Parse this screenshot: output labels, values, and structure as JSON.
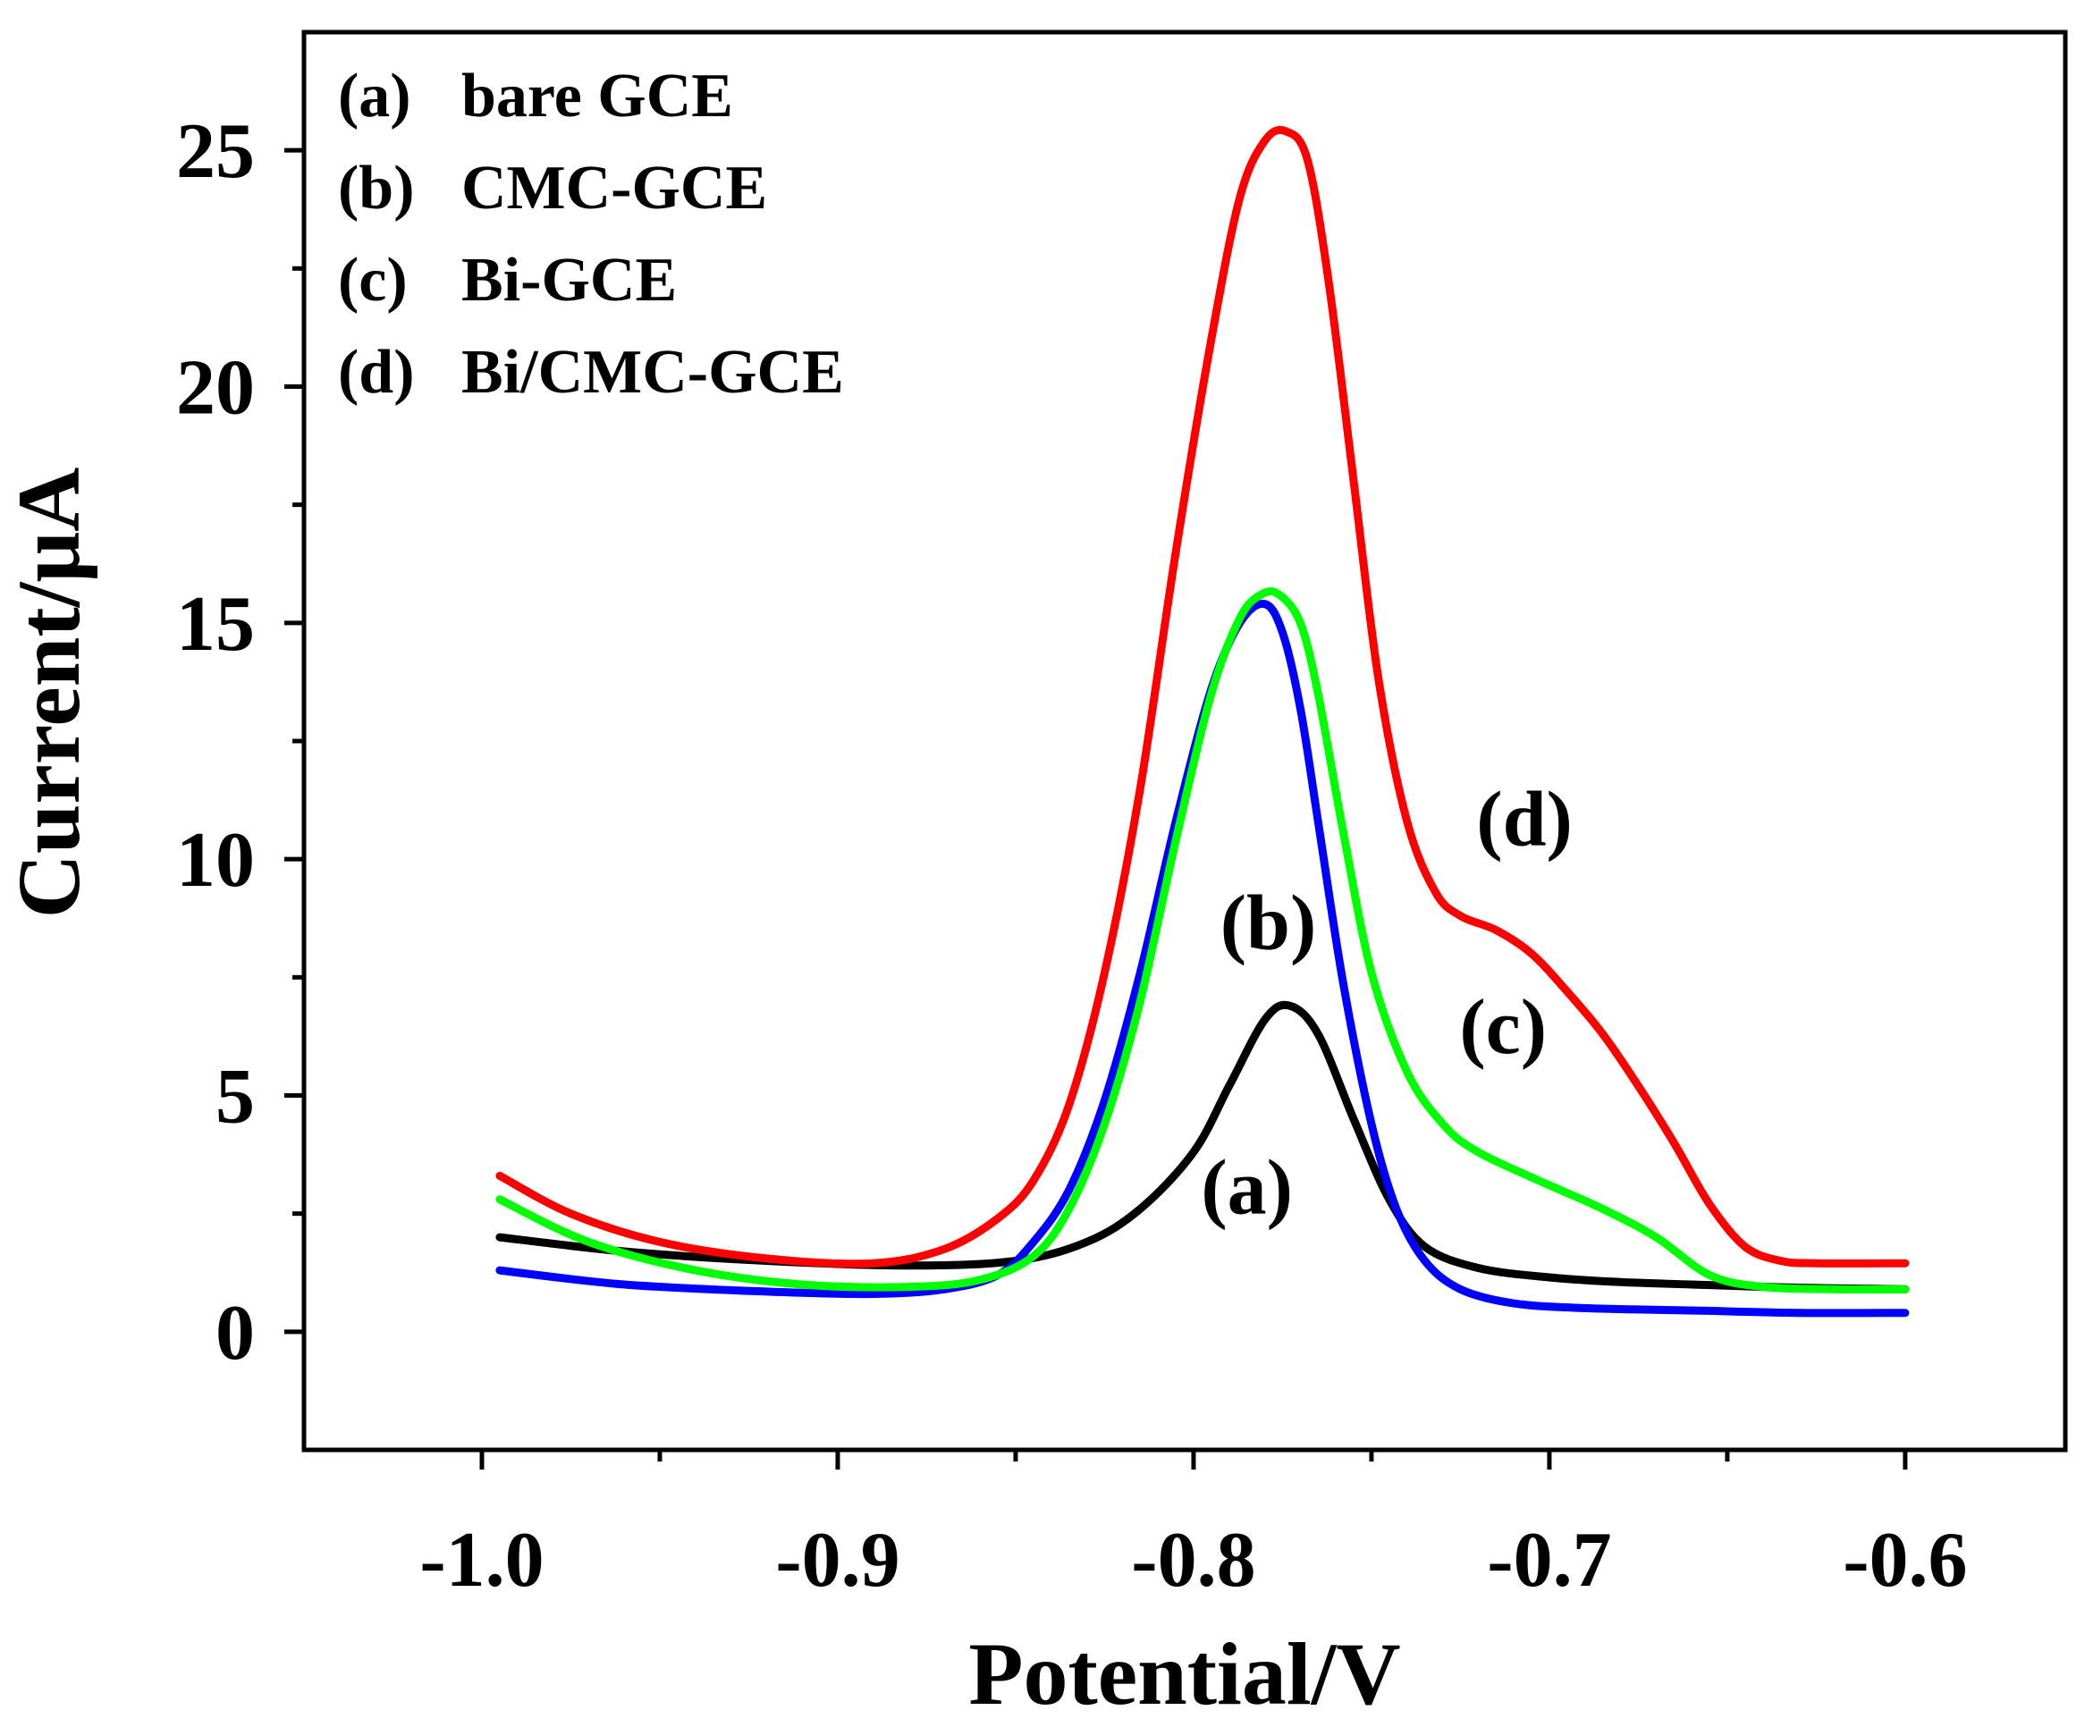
{
  "chart_data": {
    "type": "line",
    "title": "",
    "xlabel": "Potential/V",
    "ylabel": "Current/μA",
    "xlim": [
      -1.05,
      -0.555
    ],
    "ylim": [
      -2.5,
      27.5
    ],
    "grid": false,
    "legend_position": "top-left",
    "x_ticks": [
      {
        "value": -1.0,
        "label": "-1.0"
      },
      {
        "value": -0.9,
        "label": "-0.9"
      },
      {
        "value": -0.8,
        "label": "-0.8"
      },
      {
        "value": -0.7,
        "label": "-0.7"
      },
      {
        "value": -0.6,
        "label": "-0.6"
      }
    ],
    "x_minor_ticks": [
      -0.95,
      -0.85,
      -0.75,
      -0.65
    ],
    "y_ticks": [
      {
        "value": 0,
        "label": "0"
      },
      {
        "value": 5,
        "label": "5"
      },
      {
        "value": 10,
        "label": "10"
      },
      {
        "value": 15,
        "label": "15"
      },
      {
        "value": 20,
        "label": "20"
      },
      {
        "value": 25,
        "label": "25"
      }
    ],
    "y_minor_ticks": [
      2.5,
      7.5,
      12.5,
      17.5,
      22.5
    ],
    "legend": [
      {
        "key": "(a)",
        "label": "bare GCE"
      },
      {
        "key": "(b)",
        "label": "CMC-GCE"
      },
      {
        "key": "(c)",
        "label": "Bi-GCE"
      },
      {
        "key": "(d)",
        "label": "Bi/CMC-GCE"
      }
    ],
    "series": [
      {
        "name": "bare GCE",
        "color": "#000000",
        "x": [
          -0.995,
          -0.96,
          -0.92,
          -0.88,
          -0.85,
          -0.83,
          -0.815,
          -0.8,
          -0.79,
          -0.78,
          -0.773,
          -0.765,
          -0.755,
          -0.745,
          -0.735,
          -0.72,
          -0.7,
          -0.68,
          -0.66,
          -0.64,
          -0.62,
          -0.6
        ],
        "y": [
          2.0,
          1.7,
          1.5,
          1.4,
          1.5,
          1.9,
          2.6,
          3.8,
          5.2,
          6.6,
          6.9,
          6.3,
          4.5,
          2.8,
          1.8,
          1.35,
          1.15,
          1.05,
          1.0,
          0.95,
          0.92,
          0.9
        ]
      },
      {
        "name": "CMC-GCE",
        "color": "#0000ff",
        "x": [
          -0.995,
          -0.96,
          -0.92,
          -0.89,
          -0.87,
          -0.855,
          -0.845,
          -0.835,
          -0.825,
          -0.815,
          -0.805,
          -0.795,
          -0.787,
          -0.78,
          -0.775,
          -0.77,
          -0.765,
          -0.758,
          -0.75,
          -0.743,
          -0.735,
          -0.725,
          -0.71,
          -0.69,
          -0.66,
          -0.63,
          -0.6
        ],
        "y": [
          1.3,
          1.0,
          0.85,
          0.8,
          0.9,
          1.2,
          1.9,
          3.0,
          4.9,
          7.6,
          10.8,
          13.6,
          15.0,
          15.4,
          14.8,
          13.2,
          10.8,
          7.4,
          4.4,
          2.6,
          1.5,
          0.9,
          0.6,
          0.5,
          0.45,
          0.4,
          0.4
        ]
      },
      {
        "name": "Bi-GCE",
        "color": "#00ff00",
        "x": [
          -0.995,
          -0.97,
          -0.94,
          -0.91,
          -0.88,
          -0.86,
          -0.845,
          -0.835,
          -0.825,
          -0.815,
          -0.805,
          -0.795,
          -0.787,
          -0.781,
          -0.776,
          -0.77,
          -0.765,
          -0.758,
          -0.75,
          -0.74,
          -0.73,
          -0.72,
          -0.7,
          -0.685,
          -0.67,
          -0.655,
          -0.64,
          -0.62,
          -0.6
        ],
        "y": [
          2.8,
          1.9,
          1.3,
          1.0,
          0.95,
          1.1,
          1.6,
          2.6,
          4.4,
          7.0,
          10.4,
          13.5,
          15.1,
          15.6,
          15.6,
          15.0,
          13.5,
          10.6,
          7.6,
          5.5,
          4.4,
          3.8,
          3.1,
          2.6,
          2.0,
          1.2,
          0.95,
          0.9,
          0.9
        ]
      },
      {
        "name": "Bi/CMC-GCE",
        "color": "#ff0000",
        "x": [
          -0.995,
          -0.975,
          -0.95,
          -0.92,
          -0.89,
          -0.87,
          -0.855,
          -0.845,
          -0.835,
          -0.825,
          -0.815,
          -0.805,
          -0.795,
          -0.787,
          -0.78,
          -0.774,
          -0.768,
          -0.762,
          -0.755,
          -0.748,
          -0.74,
          -0.732,
          -0.725,
          -0.715,
          -0.705,
          -0.695,
          -0.685,
          -0.675,
          -0.665,
          -0.655,
          -0.645,
          -0.635,
          -0.625,
          -0.6
        ],
        "y": [
          3.3,
          2.5,
          1.9,
          1.55,
          1.45,
          1.75,
          2.4,
          3.2,
          4.8,
          7.6,
          11.5,
          16.5,
          21.0,
          24.0,
          25.2,
          25.4,
          24.8,
          22.2,
          18.0,
          13.8,
          10.8,
          9.3,
          8.8,
          8.5,
          8.0,
          7.2,
          6.3,
          5.2,
          4.0,
          2.7,
          1.8,
          1.5,
          1.45,
          1.45
        ]
      }
    ],
    "curve_labels": [
      {
        "text": "(a)",
        "x": -0.785,
        "y": 2.5
      },
      {
        "text": "(b)",
        "x": -0.779,
        "y": 8.1
      },
      {
        "text": "(c)",
        "x": -0.713,
        "y": 5.9
      },
      {
        "text": "(d)",
        "x": -0.707,
        "y": 10.3
      }
    ]
  }
}
